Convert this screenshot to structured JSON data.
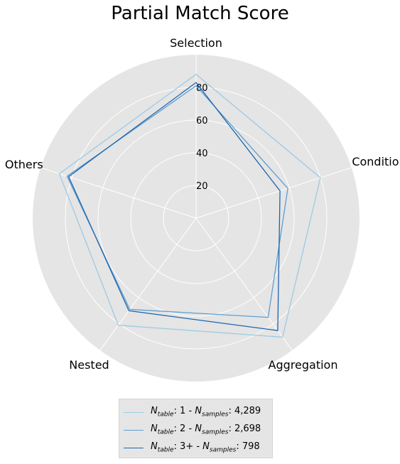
{
  "chart_data": {
    "type": "radar",
    "title": "Partial Match Score",
    "axes": [
      "Selection",
      "Condition",
      "Aggregation",
      "Nested",
      "Others"
    ],
    "rlim": [
      0,
      100
    ],
    "rticks": [
      20,
      40,
      60,
      80
    ],
    "rtick_labels": [
      "20",
      "40",
      "60",
      "80"
    ],
    "grid": true,
    "legend_position": "bottom",
    "series": [
      {
        "name": "N_table: 1 - N_samples: 4,289",
        "name_parts": {
          "n1": "N",
          "s1": "table",
          "v1": ": 1 - ",
          "n2": "N",
          "s2": "samples",
          "v2": ": 4,289"
        },
        "color": "#9ecae1",
        "values": [
          88,
          80,
          90,
          81,
          88
        ]
      },
      {
        "name": "N_table: 2 - N_samples: 2,698",
        "name_parts": {
          "n1": "N",
          "s1": "table",
          "v1": ": 2 - ",
          "n2": "N",
          "s2": "samples",
          "v2": ": 2,698"
        },
        "color": "#5b9fd1",
        "values": [
          81,
          59,
          75,
          69,
          83
        ]
      },
      {
        "name": "N_table: 3+ - N_samples: 798",
        "name_parts": {
          "n1": "N",
          "s1": "table",
          "v1": ": 3+ - ",
          "n2": "N",
          "s2": "samples",
          "v2": ": 798"
        },
        "color": "#1f64ad",
        "values": [
          83,
          54,
          85,
          70,
          82
        ]
      }
    ]
  }
}
